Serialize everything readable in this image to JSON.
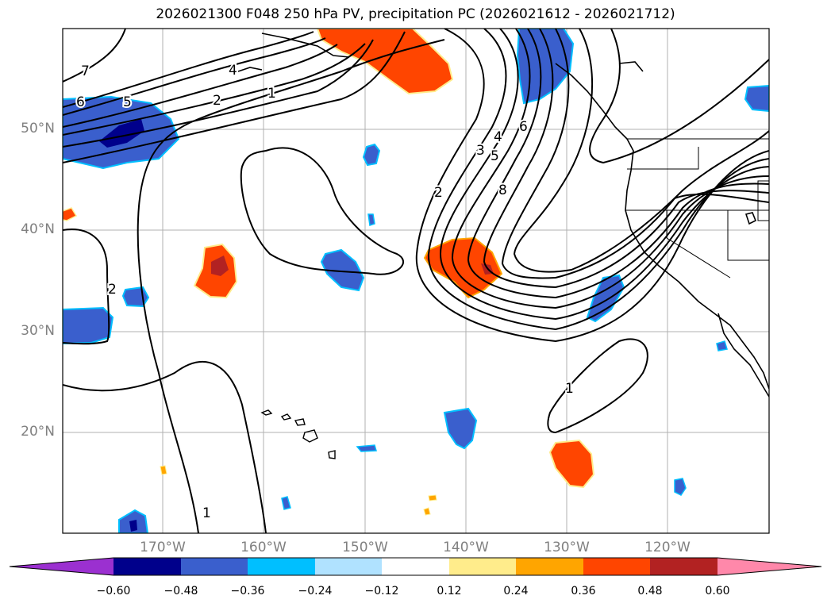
{
  "title": "2026021300 F048 250 hPa PV, precipitation PC (2026021612 - 2026021712)",
  "latitude_labels": [
    "50°N",
    "40°N",
    "30°N",
    "20°N"
  ],
  "longitude_labels": [
    "170°W",
    "160°W",
    "150°W",
    "140°W",
    "130°W",
    "120°W"
  ],
  "contour_labels": [
    "7",
    "6",
    "5",
    "4",
    "2",
    "1",
    "2",
    "3",
    "4",
    "5",
    "6",
    "8",
    "2",
    "1",
    "1"
  ],
  "colorbar": {
    "ticks": [
      "−0.60",
      "−0.48",
      "−0.36",
      "−0.24",
      "−0.12",
      "0.12",
      "0.24",
      "0.36",
      "0.48",
      "0.60"
    ],
    "colors": [
      "#9b30d0",
      "#00008b",
      "#3a5fcd",
      "#00bfff",
      "#b0e2ff",
      "#ffffff",
      "#ffec8b",
      "#ffa500",
      "#ff4500",
      "#b22222",
      "#ff88aa"
    ]
  },
  "colors": {
    "neg_weak": "#3a5fcd",
    "neg_strong": "#00008b",
    "neg_light": "#00bfff",
    "pos_weak": "#ff4500",
    "pos_strong": "#b22222",
    "pos_light": "#ffec8b"
  }
}
